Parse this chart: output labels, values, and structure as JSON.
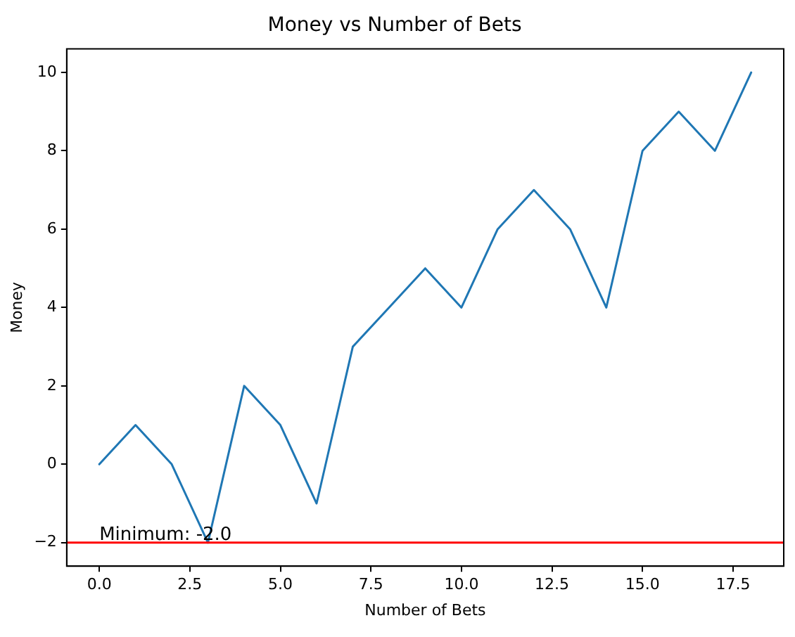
{
  "chart_data": {
    "type": "line",
    "title": "Money vs Number of Bets",
    "xlabel": "Number of Bets",
    "ylabel": "Money",
    "x": [
      0,
      1,
      2,
      3,
      4,
      5,
      6,
      7,
      8,
      9,
      10,
      11,
      12,
      13,
      14,
      15,
      16,
      17,
      18
    ],
    "series": [
      {
        "color": "#1f77b4",
        "values": [
          0,
          1,
          0,
          -2,
          2,
          1,
          -1,
          3,
          4,
          5,
          4,
          6,
          7,
          6,
          4,
          8,
          9,
          8,
          10
        ]
      }
    ],
    "xlim": [
      -0.9,
      18.9
    ],
    "xticks": [
      {
        "value": 0,
        "label": "0.0"
      },
      {
        "value": 2.5,
        "label": "2.5"
      },
      {
        "value": 5,
        "label": "5.0"
      },
      {
        "value": 7.5,
        "label": "7.5"
      },
      {
        "value": 10,
        "label": "10.0"
      },
      {
        "value": 12.5,
        "label": "12.5"
      },
      {
        "value": 15,
        "label": "15.0"
      },
      {
        "value": 17.5,
        "label": "17.5"
      }
    ],
    "ylim": [
      -2.6,
      10.6
    ],
    "yticks": [
      {
        "value": -2,
        "label": "−2"
      },
      0,
      2,
      4,
      6,
      8,
      10
    ],
    "ref_lines": [
      {
        "axis": "y",
        "value": -2,
        "color": "#ff0000"
      }
    ],
    "annotations": [
      {
        "text": "Minimum: -2.0",
        "x": 0,
        "y": -2
      }
    ],
    "grid": false,
    "legend": false,
    "marker": "none",
    "line_style": "solid"
  }
}
